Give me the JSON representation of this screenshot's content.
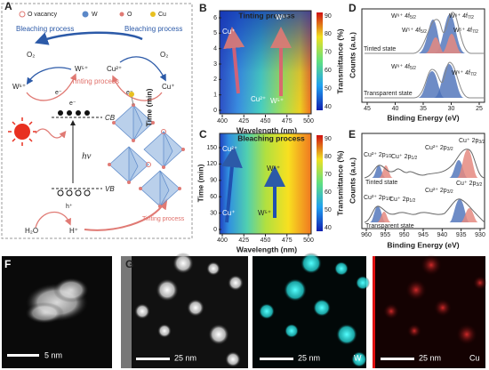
{
  "panels": {
    "A": {
      "label": "A",
      "legend": [
        "O vacancy",
        "W",
        "O",
        "Cu"
      ],
      "bleaching": "Bleaching process",
      "tinting": "Tinting process",
      "o2": "O₂",
      "w6": "W⁶⁺",
      "w5": "W⁵⁺",
      "cu2": "Cu²⁺",
      "cu1": "Cu⁺",
      "electron": "e⁻",
      "cb": "CB",
      "vb": "VB",
      "hv": "hν",
      "hole": "h⁺",
      "water": "H₂O",
      "proton": "H⁺"
    },
    "B": {
      "label": "B",
      "title": "Tinting process",
      "xlabel": "Wavelength (nm)",
      "ylabel": "Time (min)",
      "cbar_label": "Transmittance (%)",
      "xticks": [
        400,
        425,
        450,
        475,
        500
      ],
      "yticks": [
        0,
        1,
        2,
        3,
        4,
        5,
        6
      ],
      "cbar_ticks": [
        40,
        50,
        60,
        70,
        80,
        90
      ],
      "annotations": [
        "Cu⁺",
        "W⁶⁺",
        "Cu²⁺",
        "W⁵⁺"
      ]
    },
    "C": {
      "label": "C",
      "title": "Bleaching process",
      "xlabel": "Wavelength (nm)",
      "ylabel": "Time (min)",
      "cbar_label": "Transmittance (%)",
      "xticks": [
        400,
        425,
        450,
        475,
        500
      ],
      "yticks": [
        0,
        30,
        60,
        90,
        120,
        150
      ],
      "cbar_ticks": [
        40,
        50,
        60,
        70,
        80,
        90
      ],
      "annotations": [
        "Cu²⁺",
        "W⁶⁺",
        "Cu⁺",
        "W⁵⁺"
      ]
    },
    "D": {
      "label": "D",
      "xlabel": "Binding Energy (eV)",
      "ylabel": "Counts (a.u.)",
      "xticks": [
        45,
        40,
        35,
        30,
        25
      ],
      "states": [
        "Tinted state",
        "Transparent state"
      ],
      "peaks": [
        {
          "text": "W⁶⁺ 4f",
          "sub": "5/2"
        },
        {
          "text": "W⁶⁺ 4f",
          "sub": "7/2"
        },
        {
          "text": "W⁵⁺ 4f",
          "sub": "5/2"
        },
        {
          "text": "W⁵⁺ 4f",
          "sub": "7/2"
        },
        {
          "text": "W⁶⁺ 4f",
          "sub": "5/2"
        },
        {
          "text": "W⁶⁺ 4f",
          "sub": "7/2"
        }
      ]
    },
    "E": {
      "label": "E",
      "xlabel": "Binding Energy (eV)",
      "ylabel": "Counts (a.u.)",
      "xticks": [
        960,
        955,
        950,
        945,
        940,
        935,
        930
      ],
      "states": [
        "Tinted state",
        "Transparent state"
      ],
      "peaks": [
        {
          "text": "Cu²⁺ 2p",
          "sub": "1/2"
        },
        {
          "text": "Cu⁺ 2p",
          "sub": "1/2"
        },
        {
          "text": "Cu²⁺ 2p",
          "sub": "3/2"
        },
        {
          "text": "Cu⁺ 2p",
          "sub": "3/2"
        },
        {
          "text": "Cu²⁺ 2p",
          "sub": "1/2"
        },
        {
          "text": "Cu⁺ 2p",
          "sub": "1/2"
        },
        {
          "text": "Cu²⁺ 2p",
          "sub": "3/2"
        },
        {
          "text": "Cu⁺ 2p",
          "sub": "3/2"
        }
      ]
    },
    "F": {
      "label": "F",
      "scale": "5 nm"
    },
    "G": {
      "label": "G",
      "scales": [
        "25 nm",
        "25 nm",
        "25 nm"
      ],
      "maps": [
        "W",
        "Cu"
      ]
    }
  }
}
